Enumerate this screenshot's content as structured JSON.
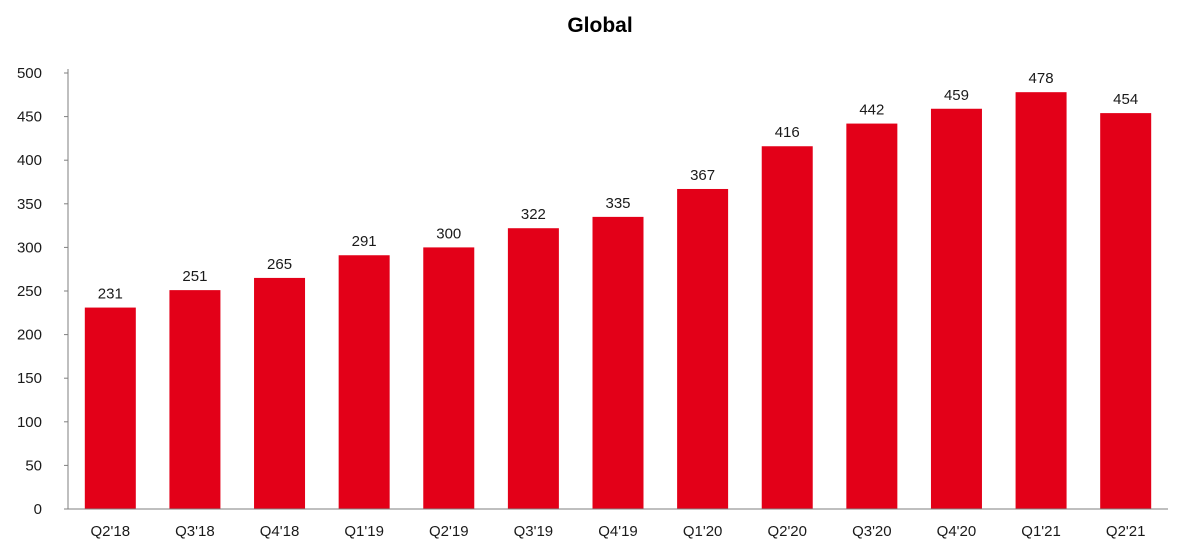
{
  "chart_data": {
    "type": "bar",
    "title": "Global",
    "xlabel": "",
    "ylabel": "",
    "categories": [
      "Q2'18",
      "Q3'18",
      "Q4'18",
      "Q1'19",
      "Q2'19",
      "Q3'19",
      "Q4'19",
      "Q1'20",
      "Q2'20",
      "Q3'20",
      "Q4'20",
      "Q1'21",
      "Q2'21"
    ],
    "values": [
      231,
      251,
      265,
      291,
      300,
      322,
      335,
      367,
      416,
      442,
      459,
      478,
      454
    ],
    "ylim": [
      0,
      500
    ],
    "yticks": [
      0,
      50,
      100,
      150,
      200,
      250,
      300,
      350,
      400,
      450,
      500
    ],
    "grid": false,
    "legend": "none",
    "bar_color": "#e30018",
    "data_labels": true
  }
}
